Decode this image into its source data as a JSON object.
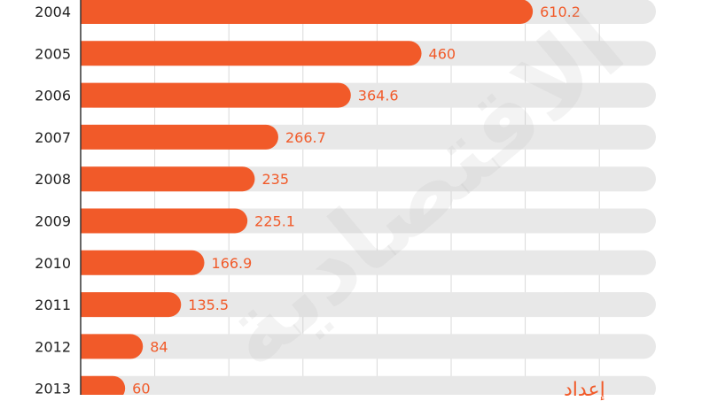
{
  "colors": {
    "bar": "#f15a29",
    "track": "#e8e8e8",
    "grid": "#d9d9d9",
    "axis": "#333333",
    "value_text": "#f15a29",
    "year_text": "#222222"
  },
  "watermark_text": "الاقتصادية",
  "footer_text": "إعداد",
  "chart_data": {
    "type": "bar",
    "orientation": "horizontal",
    "title": "",
    "xlabel": "",
    "ylabel": "",
    "xlim": [
      0,
      760
    ],
    "grid": true,
    "categories": [
      "2004",
      "2005",
      "2006",
      "2007",
      "2008",
      "2009",
      "2010",
      "2011",
      "2012",
      "2013"
    ],
    "values": [
      610.2,
      460,
      364.6,
      266.7,
      235,
      225.1,
      166.9,
      135.5,
      84,
      60
    ],
    "value_labels": [
      "610.2",
      "460",
      "364.6",
      "266.7",
      "235",
      "225.1",
      "166.9",
      "135.5",
      "84",
      "60"
    ]
  }
}
